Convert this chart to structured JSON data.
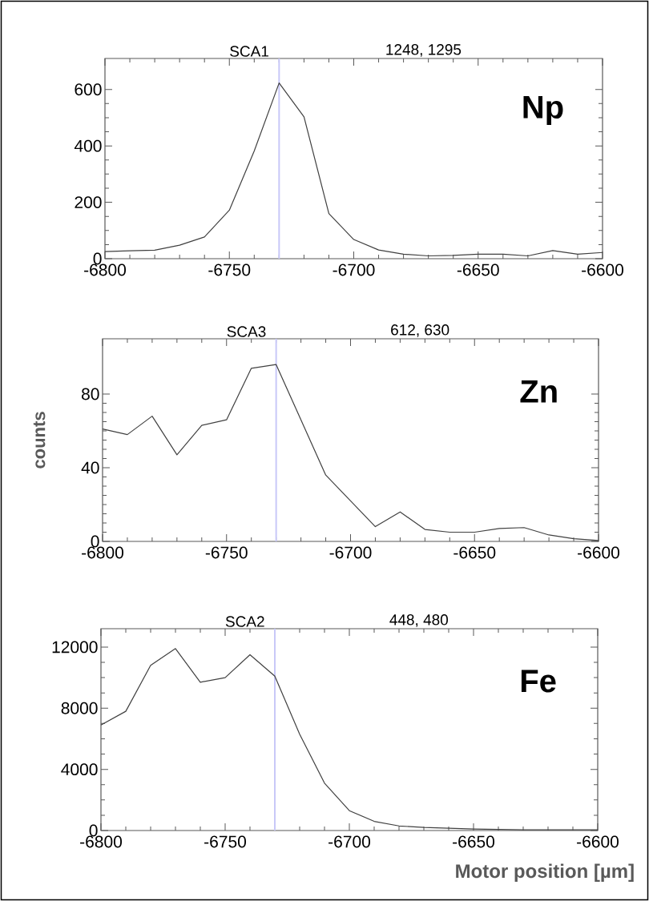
{
  "chart_data": [
    {
      "type": "line",
      "annotations": [
        "SCA1",
        "1248, 1295",
        "Np"
      ],
      "x": [
        -6800,
        -6790,
        -6780,
        -6770,
        -6760,
        -6750,
        -6740,
        -6730,
        -6720,
        -6710,
        -6700,
        -6690,
        -6680,
        -6670,
        -6660,
        -6650,
        -6640,
        -6630,
        -6620,
        -6610,
        -6600
      ],
      "series": [
        {
          "color": "#404040",
          "values": [
            25,
            28,
            30,
            48,
            77,
            172,
            382,
            623,
            503,
            160,
            68,
            31,
            16,
            10,
            12,
            16,
            16,
            10,
            29,
            16,
            22
          ]
        }
      ],
      "xlim": [
        -6800,
        -6600
      ],
      "xticks": [
        -6800,
        -6750,
        -6700,
        -6650,
        -6600
      ],
      "ylim": [
        0,
        710
      ],
      "yticks": [
        0,
        200,
        400,
        600
      ],
      "ref_lines": [
        {
          "axis": "x",
          "value": -6730,
          "color": "#c8c8f8"
        }
      ]
    },
    {
      "type": "line",
      "ylabel": "counts",
      "annotations": [
        "SCA3",
        "612, 630",
        "Zn"
      ],
      "x": [
        -6800,
        -6790,
        -6780,
        -6770,
        -6760,
        -6750,
        -6740,
        -6730,
        -6720,
        -6710,
        -6700,
        -6690,
        -6680,
        -6670,
        -6660,
        -6650,
        -6640,
        -6630,
        -6620,
        -6610,
        -6600
      ],
      "series": [
        {
          "color": "#404040",
          "values": [
            61,
            58,
            68,
            47,
            63,
            66,
            94,
            96,
            66,
            36,
            22,
            8,
            16,
            6.5,
            5,
            5,
            7,
            7.5,
            3.5,
            1.5,
            0.5
          ]
        }
      ],
      "xlim": [
        -6800,
        -6600
      ],
      "xticks": [
        -6800,
        -6750,
        -6700,
        -6650,
        -6600
      ],
      "ylim": [
        0,
        110
      ],
      "yticks": [
        0,
        40,
        80
      ],
      "ref_lines": [
        {
          "axis": "x",
          "value": -6730,
          "color": "#c8c8f8"
        }
      ]
    },
    {
      "type": "line",
      "xlabel": "Motor position [µm]",
      "annotations": [
        "SCA2",
        "448, 480",
        "Fe"
      ],
      "x": [
        -6800,
        -6790,
        -6780,
        -6770,
        -6760,
        -6750,
        -6740,
        -6730,
        -6720,
        -6710,
        -6700,
        -6690,
        -6680,
        -6670,
        -6660,
        -6650,
        -6640,
        -6630,
        -6620,
        -6610,
        -6600
      ],
      "series": [
        {
          "color": "#404040",
          "values": [
            6900,
            7800,
            10800,
            11900,
            9700,
            10000,
            11500,
            10100,
            6300,
            3100,
            1300,
            600,
            300,
            200,
            150,
            100,
            70,
            50,
            50,
            50,
            50
          ]
        }
      ],
      "xlim": [
        -6800,
        -6600
      ],
      "xticks": [
        -6800,
        -6750,
        -6700,
        -6650,
        -6600
      ],
      "ylim": [
        0,
        13200
      ],
      "yticks": [
        0,
        4000,
        8000,
        12000
      ],
      "ref_lines": [
        {
          "axis": "x",
          "value": -6730,
          "color": "#c8c8f8"
        }
      ]
    }
  ]
}
